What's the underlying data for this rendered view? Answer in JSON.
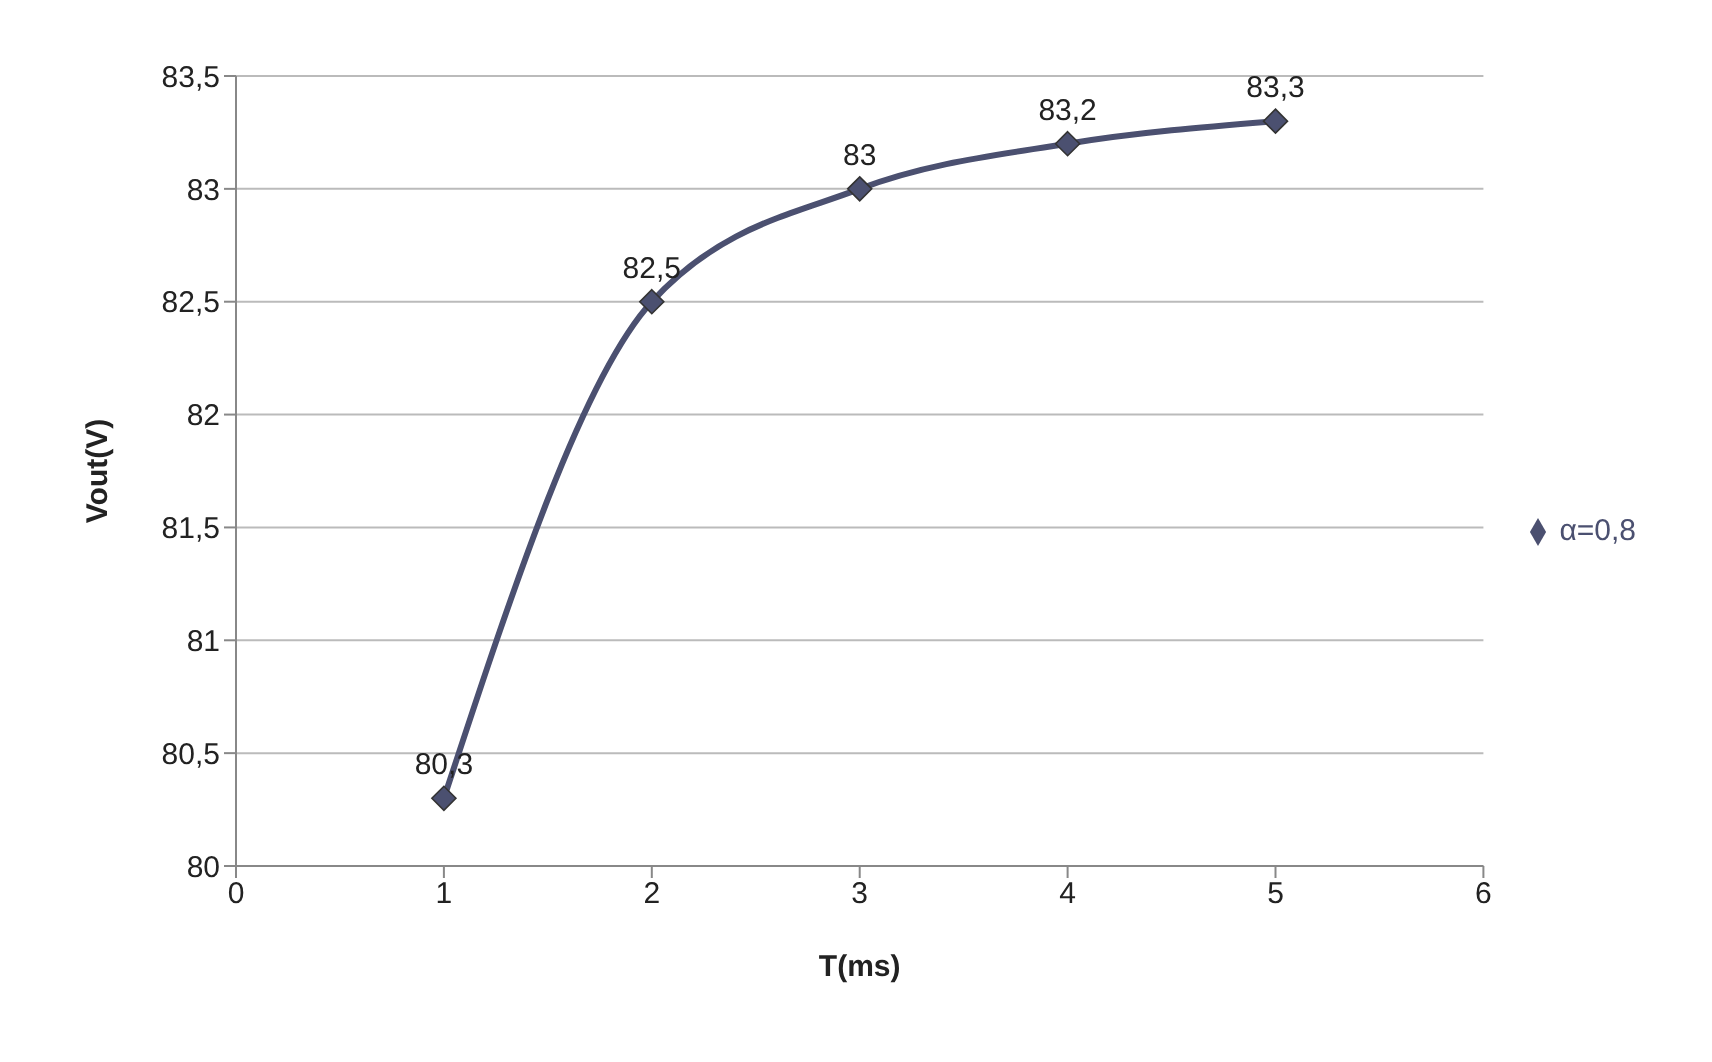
{
  "chart_data": {
    "type": "line",
    "xlabel": "T(ms)",
    "ylabel": "Vout(V)",
    "x": [
      1,
      2,
      3,
      4,
      5
    ],
    "series": [
      {
        "name": "α=0,8",
        "color": "#4b5070",
        "values": [
          80.3,
          82.5,
          83,
          83.2,
          83.3
        ],
        "value_labels": [
          "80,3",
          "82,5",
          "83",
          "83,2",
          "83,3"
        ]
      }
    ],
    "xlim": [
      0,
      6
    ],
    "xticks": [
      0,
      1,
      2,
      3,
      4,
      5,
      6
    ],
    "ylim": [
      80,
      83.5
    ],
    "yticks": [
      80,
      {
        "value": 80.5,
        "label": "80,5"
      },
      81,
      {
        "value": 81.5,
        "label": "81,5"
      },
      82,
      {
        "value": 82.5,
        "label": "82,5"
      },
      83,
      {
        "value": 83.5,
        "label": "83,5"
      }
    ],
    "grid": "y",
    "legend": "right",
    "marker": "diamond",
    "line_style": "solid"
  }
}
